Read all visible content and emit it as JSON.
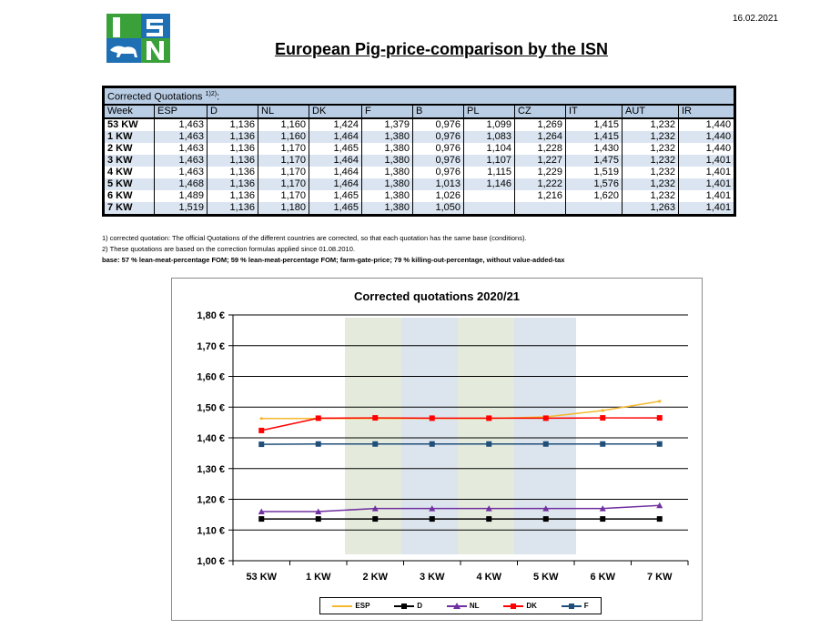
{
  "header": {
    "date": "16.02.2021",
    "title": "European Pig-price-comparison by the ISN"
  },
  "logo": {
    "letters": "ISN",
    "colors": {
      "blue": "#1f6fb4",
      "green": "#3aa13a"
    }
  },
  "table": {
    "caption": "Corrected Quotations",
    "caption_sup": "1)2)",
    "caption_suffix": ":",
    "headers": [
      "Week",
      "ESP",
      "D",
      "NL",
      "DK",
      "F",
      "B",
      "PL",
      "CZ",
      "IT",
      "AUT",
      "IR"
    ],
    "rows": [
      [
        "53 KW",
        "1,463",
        "1,136",
        "1,160",
        "1,424",
        "1,379",
        "0,976",
        "1,099",
        "1,269",
        "1,415",
        "1,232",
        "1,440"
      ],
      [
        "1 KW",
        "1,463",
        "1,136",
        "1,160",
        "1,464",
        "1,380",
        "0,976",
        "1,083",
        "1,264",
        "1,415",
        "1,232",
        "1,440"
      ],
      [
        "2 KW",
        "1,463",
        "1,136",
        "1,170",
        "1,465",
        "1,380",
        "0,976",
        "1,104",
        "1,228",
        "1,430",
        "1,232",
        "1,440"
      ],
      [
        "3 KW",
        "1,463",
        "1,136",
        "1,170",
        "1,464",
        "1,380",
        "0,976",
        "1,107",
        "1,227",
        "1,475",
        "1,232",
        "1,401"
      ],
      [
        "4 KW",
        "1,463",
        "1,136",
        "1,170",
        "1,464",
        "1,380",
        "0,976",
        "1,115",
        "1,229",
        "1,519",
        "1,232",
        "1,401"
      ],
      [
        "5 KW",
        "1,468",
        "1,136",
        "1,170",
        "1,464",
        "1,380",
        "1,013",
        "1,146",
        "1,222",
        "1,576",
        "1,232",
        "1,401"
      ],
      [
        "6 KW",
        "1,489",
        "1,136",
        "1,170",
        "1,465",
        "1,380",
        "1,026",
        "",
        "1,216",
        "1,620",
        "1,232",
        "1,401"
      ],
      [
        "7 KW",
        "1,519",
        "1,136",
        "1,180",
        "1,465",
        "1,380",
        "1,050",
        "",
        "",
        "",
        "1,263",
        "1,401"
      ]
    ]
  },
  "notes": {
    "n1": "1) corrected quotation: The official Quotations of the different countries are corrected, so that each quotation has the same base (conditions).",
    "n2": "2) These quotations are based on the correction formulas applied since 01.08.2010.",
    "base": "base: 57 % lean-meat-percentage FOM; 59 % lean-meat-percentage FOM; farm-gate-price; 79 % killing-out-percentage, without value-added-tax"
  },
  "chart_data": {
    "type": "line",
    "title": "Corrected quotations 2020/21",
    "categories": [
      "53 KW",
      "1 KW",
      "2 KW",
      "3 KW",
      "4 KW",
      "5 KW",
      "6 KW",
      "7 KW"
    ],
    "ylim": [
      1.0,
      1.8
    ],
    "yticks": [
      "1,00 €",
      "1,10 €",
      "1,20 €",
      "1,30 €",
      "1,40 €",
      "1,50 €",
      "1,60 €",
      "1,70 €",
      "1,80 €"
    ],
    "grid": true,
    "legend_position": "bottom",
    "series": [
      {
        "name": "ESP",
        "color": "#f5b82e",
        "marker": "none",
        "values": [
          1.463,
          1.463,
          1.463,
          1.463,
          1.463,
          1.468,
          1.489,
          1.519
        ]
      },
      {
        "name": "D",
        "color": "#000000",
        "marker": "square",
        "values": [
          1.136,
          1.136,
          1.136,
          1.136,
          1.136,
          1.136,
          1.136,
          1.136
        ]
      },
      {
        "name": "NL",
        "color": "#7030a0",
        "marker": "triangle",
        "values": [
          1.16,
          1.16,
          1.17,
          1.17,
          1.17,
          1.17,
          1.17,
          1.18
        ]
      },
      {
        "name": "DK",
        "color": "#ff0000",
        "marker": "square",
        "values": [
          1.424,
          1.464,
          1.465,
          1.464,
          1.464,
          1.464,
          1.465,
          1.465
        ]
      },
      {
        "name": "F",
        "color": "#1f4e79",
        "marker": "square",
        "values": [
          1.379,
          1.38,
          1.38,
          1.38,
          1.38,
          1.38,
          1.38,
          1.38
        ]
      }
    ]
  }
}
